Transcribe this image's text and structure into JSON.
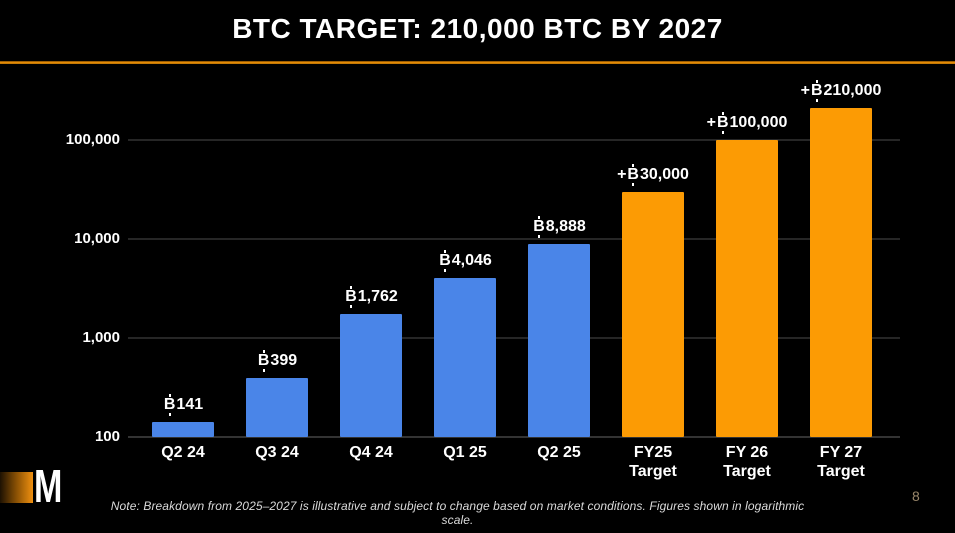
{
  "header": {
    "title": "BTC TARGET: 210,000 BTC BY 2027"
  },
  "chart_data": {
    "type": "bar",
    "title": "BTC TARGET: 210,000 BTC BY 2027",
    "y_scale": "logarithmic",
    "ylim": [
      100,
      300000
    ],
    "xlabel": "",
    "ylabel": "",
    "grid": "horizontal",
    "legend": "none",
    "currency_symbol": "₿",
    "y_ticks": [
      {
        "value": 100,
        "label": "100"
      },
      {
        "value": 1000,
        "label": "1,000"
      },
      {
        "value": 10000,
        "label": "10,000"
      },
      {
        "value": 100000,
        "label": "100,000"
      }
    ],
    "colors": {
      "actual": "#4a85e8",
      "target": "#fc9b04"
    },
    "bars": [
      {
        "category": "Q2 24",
        "category_line2": "",
        "value": 141,
        "label": "₿141",
        "label_prefix": "",
        "label_amount": "141",
        "group": "actual"
      },
      {
        "category": "Q3 24",
        "category_line2": "",
        "value": 399,
        "label": "₿399",
        "label_prefix": "",
        "label_amount": "399",
        "group": "actual"
      },
      {
        "category": "Q4 24",
        "category_line2": "",
        "value": 1762,
        "label": "₿1,762",
        "label_prefix": "",
        "label_amount": "1,762",
        "group": "actual"
      },
      {
        "category": "Q1 25",
        "category_line2": "",
        "value": 4046,
        "label": "₿4,046",
        "label_prefix": "",
        "label_amount": "4,046",
        "group": "actual"
      },
      {
        "category": "Q2 25",
        "category_line2": "",
        "value": 8888,
        "label": "₿8,888",
        "label_prefix": "",
        "label_amount": "8,888",
        "group": "actual"
      },
      {
        "category": "FY25",
        "category_line2": "Target",
        "value": 30000,
        "label": "+₿30,000",
        "label_prefix": "+",
        "label_amount": "30,000",
        "group": "target"
      },
      {
        "category": "FY 26",
        "category_line2": "Target",
        "value": 100000,
        "label": "+₿100,000",
        "label_prefix": "+",
        "label_amount": "100,000",
        "group": "target"
      },
      {
        "category": "FY 27",
        "category_line2": "Target",
        "value": 210000,
        "label": "+₿210,000",
        "label_prefix": "+",
        "label_amount": "210,000",
        "group": "target"
      }
    ]
  },
  "footer": {
    "logo_letter": "M",
    "note": "Note: Breakdown from 2025–2027 is illustrative and subject to change based on market conditions. Figures shown in logarithmic scale.",
    "page_number": "8"
  }
}
